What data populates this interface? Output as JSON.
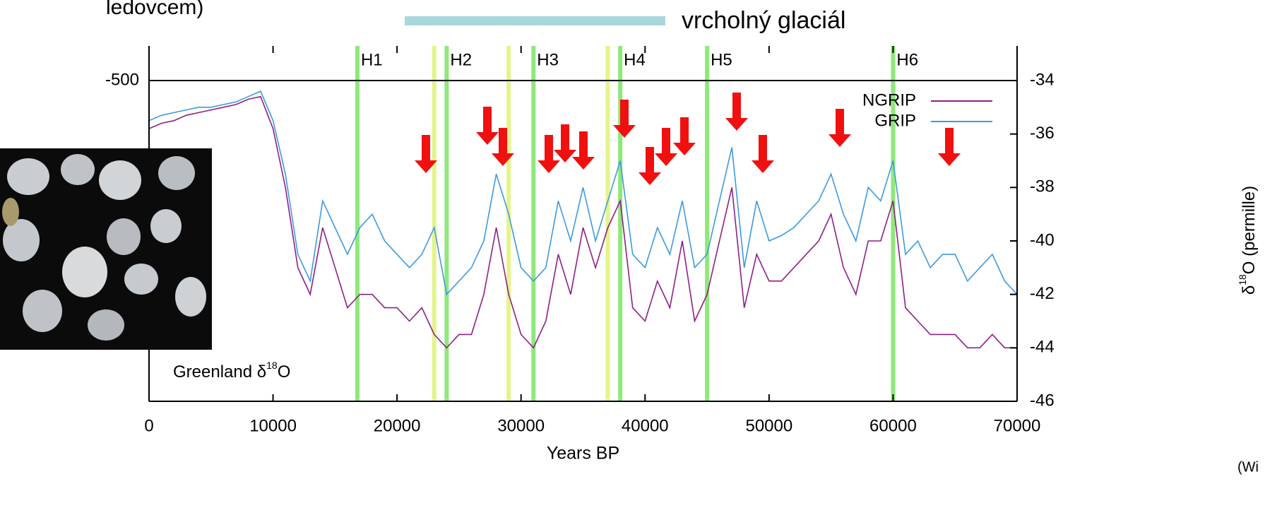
{
  "slide": {
    "top_left_text": "ledovcem)",
    "banner": "vrcholný glaciál",
    "credit": "(Wi"
  },
  "chart_data": {
    "type": "line",
    "x_label": "Years BP",
    "y_label": {
      "main": "δ",
      "sup": "18",
      "tail": "O (permille)"
    },
    "annotation": {
      "main": "Greenland δ",
      "sup": "18",
      "tail": "O"
    },
    "left_tick_label": "-500",
    "xlim": [
      0,
      70000
    ],
    "ylim": [
      -46,
      -34
    ],
    "xticks": [
      0,
      10000,
      20000,
      30000,
      40000,
      50000,
      60000,
      70000
    ],
    "yticks": [
      -46,
      -44,
      -42,
      -40,
      -38,
      -36,
      -34
    ],
    "heinrich_events": [
      {
        "label": "H1",
        "value": 16800
      },
      {
        "label": "H2",
        "value": 24000
      },
      {
        "label": "H3",
        "value": 31000
      },
      {
        "label": "H4",
        "value": 38000
      },
      {
        "label": "H5",
        "value": 45000
      },
      {
        "label": "H6",
        "value": 60000
      }
    ],
    "heinrich_color": "#8fe87a",
    "yellow_lines": [
      23000,
      29000,
      37000
    ],
    "yellow_color": "#e4f48a",
    "x": [
      0,
      1000,
      2000,
      3000,
      4000,
      5000,
      6000,
      7000,
      8000,
      9000,
      10000,
      11000,
      12000,
      13000,
      14000,
      15000,
      16000,
      17000,
      18000,
      19000,
      20000,
      21000,
      22000,
      23000,
      24000,
      25000,
      26000,
      27000,
      28000,
      29000,
      30000,
      31000,
      32000,
      33000,
      34000,
      35000,
      36000,
      37000,
      38000,
      39000,
      40000,
      41000,
      42000,
      43000,
      44000,
      45000,
      46000,
      47000,
      48000,
      49000,
      50000,
      51000,
      52000,
      53000,
      54000,
      55000,
      56000,
      57000,
      58000,
      59000,
      60000,
      61000,
      62000,
      63000,
      64000,
      65000,
      66000,
      67000,
      68000,
      69000,
      70000
    ],
    "series": [
      {
        "name": "NGRIP",
        "color": "#8e1f86",
        "values": [
          -35.8,
          -35.6,
          -35.5,
          -35.3,
          -35.2,
          -35.1,
          -35,
          -34.9,
          -34.7,
          -34.6,
          -35.8,
          -38,
          -41,
          -42,
          -39.5,
          -41,
          -42.5,
          -42,
          -42,
          -42.5,
          -42.5,
          -43,
          -42.5,
          -43.5,
          -44,
          -43.5,
          -43.5,
          -42,
          -39.5,
          -42,
          -43.5,
          -44,
          -43,
          -40.5,
          -42,
          -39.5,
          -41,
          -39.5,
          -38.5,
          -42.5,
          -43,
          -41.5,
          -42.5,
          -40,
          -43,
          -42,
          -40,
          -38,
          -42.5,
          -40.5,
          -41.5,
          -41.5,
          -41,
          -40.5,
          -40,
          -39,
          -41,
          -42,
          -40,
          -40,
          -38.5,
          -42.5,
          -43,
          -43.5,
          -43.5,
          -43.5,
          -44,
          -44,
          -43.5,
          -44,
          -44
        ]
      },
      {
        "name": "GRIP",
        "color": "#3d9ae0",
        "values": [
          -35.5,
          -35.3,
          -35.2,
          -35.1,
          -35,
          -35,
          -34.9,
          -34.8,
          -34.6,
          -34.4,
          -35.5,
          -37.5,
          -40.5,
          -41.5,
          -38.5,
          -39.5,
          -40.5,
          -39.5,
          -39,
          -40,
          -40.5,
          -41,
          -40.5,
          -39.5,
          -42,
          -41.5,
          -41,
          -40,
          -37.5,
          -39,
          -41,
          -41.5,
          -41,
          -38.5,
          -40,
          -38,
          -40,
          -38.5,
          -37,
          -40.5,
          -41,
          -39.5,
          -40.5,
          -38.5,
          -41,
          -40.5,
          -38.5,
          -36.5,
          -41,
          -38.5,
          -40,
          -39.8,
          -39.5,
          -39,
          -38.5,
          -37.5,
          -39,
          -40,
          -38,
          -38.5,
          -37,
          -40.5,
          -40,
          -41,
          -40.5,
          -40.5,
          -41.5,
          -41,
          -40.5,
          -41.5,
          -42
        ]
      }
    ]
  }
}
